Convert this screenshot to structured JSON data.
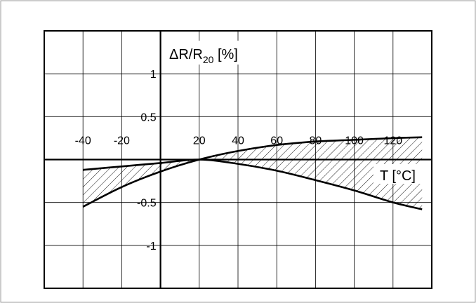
{
  "chart_data": {
    "type": "area",
    "title": "",
    "xlabel": "T [°C]",
    "ylabel": {
      "prefix": "ΔR/R",
      "subscript": "20",
      "suffix": " [%]"
    },
    "xlim": [
      -60,
      140
    ],
    "ylim": [
      -1.5,
      1.5
    ],
    "x_ticks": [
      -40,
      -20,
      20,
      40,
      60,
      80,
      100,
      120
    ],
    "y_ticks": [
      1,
      0.5,
      -0.5,
      -1
    ],
    "x_tick_labels": [
      "-40",
      "-20",
      "20",
      "40",
      "60",
      "80",
      "100",
      "120"
    ],
    "y_tick_labels": [
      "1",
      "0.5",
      "-0.5",
      "-1"
    ],
    "grid": true,
    "series": [
      {
        "x": [
          -40,
          -20,
          0,
          20,
          40,
          60,
          80,
          100,
          120,
          135
        ],
        "y": [
          -0.12,
          -0.08,
          -0.04,
          0,
          -0.05,
          -0.13,
          -0.24,
          -0.36,
          -0.5,
          -0.58
        ]
      },
      {
        "x": [
          -40,
          -20,
          0,
          20,
          40,
          60,
          80,
          100,
          120,
          135
        ],
        "y": [
          -0.55,
          -0.32,
          -0.14,
          0,
          0.1,
          0.17,
          0.21,
          0.23,
          0.25,
          0.26
        ]
      }
    ],
    "shaded_band": "between series"
  }
}
